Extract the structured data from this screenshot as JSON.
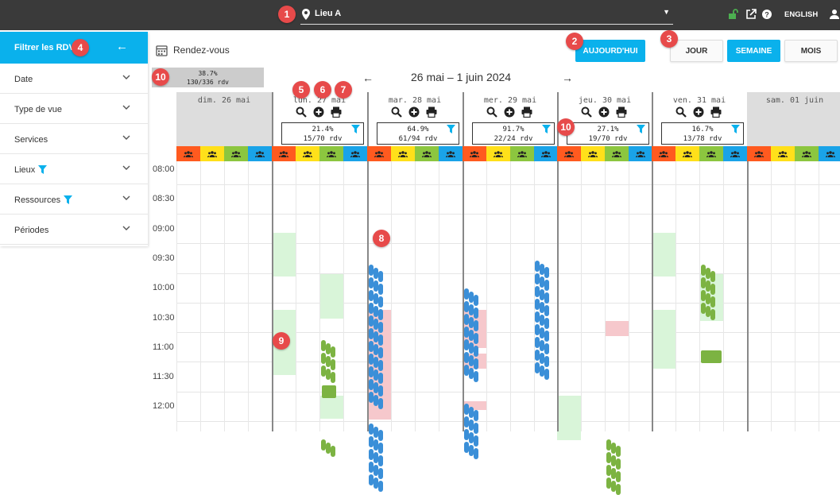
{
  "topbar": {
    "location_label": "Lieu A",
    "language": "ENGLISH",
    "icons": [
      "lock-open-icon",
      "external-link-icon",
      "help-icon",
      "user-icon"
    ]
  },
  "sidebar": {
    "title": "Filtrer les RDV",
    "items": [
      {
        "label": "Date",
        "filtered": false
      },
      {
        "label": "Type de vue",
        "filtered": false
      },
      {
        "label": "Services",
        "filtered": false
      },
      {
        "label": "Lieux",
        "filtered": true
      },
      {
        "label": "Ressources",
        "filtered": true
      },
      {
        "label": "Périodes",
        "filtered": false
      }
    ]
  },
  "header": {
    "section_title": "Rendez-vous",
    "today_label": "AUJOURD'HUI",
    "day_label": "JOUR",
    "week_label": "SEMAINE",
    "month_label": "MOIS"
  },
  "summary": {
    "percent": "38.7%",
    "count": "130/336 rdv"
  },
  "week_range": "26 mai – 1 juin 2024",
  "days": [
    {
      "name": "dim. 26 mai",
      "off": true
    },
    {
      "name": "lun. 27 mai",
      "off": false,
      "percent": "21.4%",
      "count": "15/70 rdv"
    },
    {
      "name": "mar. 28 mai",
      "off": false,
      "percent": "64.9%",
      "count": "61/94 rdv"
    },
    {
      "name": "mer. 29 mai",
      "off": false,
      "percent": "91.7%",
      "count": "22/24 rdv"
    },
    {
      "name": "jeu. 30 mai",
      "off": false,
      "percent": "27.1%",
      "count": "19/70 rdv"
    },
    {
      "name": "ven. 31 mai",
      "off": false,
      "percent": "16.7%",
      "count": "13/78 rdv"
    },
    {
      "name": "sam. 01 juin",
      "off": true
    }
  ],
  "times": [
    "08:00",
    "08:30",
    "09:00",
    "09:30",
    "10:00",
    "10:30",
    "11:00",
    "11:30",
    "12:00"
  ],
  "resource_colors": [
    "#ff5a1f",
    "#ffe01a",
    "#8cc63f",
    "#1aa3e8"
  ],
  "colors": {
    "accent": "#0ab1ec",
    "badge": "#e74a4a",
    "green_slot": "#d9f5d9",
    "red_slot": "#f6c8cc"
  },
  "badges": [
    "1",
    "2",
    "3",
    "4",
    "5",
    "6",
    "7",
    "8",
    "9",
    "10",
    "10"
  ]
}
